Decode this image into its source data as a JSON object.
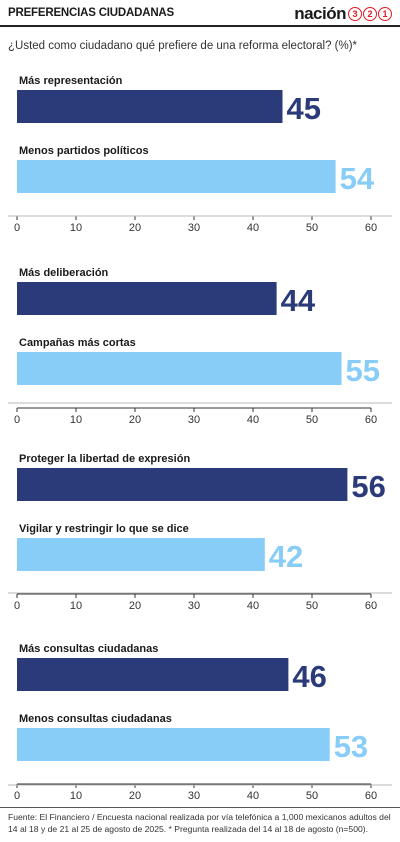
{
  "header": {
    "title": "PREFERENCIAS CIUDADANAS",
    "logo_text": "nación",
    "logo_digits": [
      "3",
      "2",
      "1"
    ]
  },
  "question": "¿Usted como ciudadano qué prefiere de una reforma electoral?   (%)*",
  "colors": {
    "dark": "#2b3a78",
    "light": "#87cdf7",
    "brand_red": "#e31b23"
  },
  "chart_data": [
    {
      "type": "bar",
      "orientation": "horizontal",
      "categories": [
        "Más representación",
        "Menos partidos políticos"
      ],
      "values": [
        45,
        54
      ],
      "xlim": [
        0,
        60
      ],
      "xticks": [
        0,
        10,
        20,
        30,
        40,
        50,
        60
      ]
    },
    {
      "type": "bar",
      "orientation": "horizontal",
      "categories": [
        "Más deliberación",
        "Campañas más cortas"
      ],
      "values": [
        44,
        55
      ],
      "xlim": [
        0,
        60
      ],
      "xticks": [
        0,
        10,
        20,
        30,
        40,
        50,
        60
      ]
    },
    {
      "type": "bar",
      "orientation": "horizontal",
      "categories": [
        "Proteger la libertad de expresión",
        "Vigilar y restringir lo que se dice"
      ],
      "values": [
        56,
        42
      ],
      "xlim": [
        0,
        60
      ],
      "xticks": [
        0,
        10,
        20,
        30,
        40,
        50,
        60
      ]
    },
    {
      "type": "bar",
      "orientation": "horizontal",
      "categories": [
        "Más consultas ciudadanas",
        "Menos consultas ciudadanas"
      ],
      "values": [
        46,
        53
      ],
      "xlim": [
        0,
        60
      ],
      "xticks": [
        0,
        10,
        20,
        30,
        40,
        50,
        60
      ]
    }
  ],
  "footer": "Fuente: El Financiero / Encuesta nacional realizada por vía telefónica a 1,000 mexicanos adultos del 14 al 18 y de 21 al 25 de agosto de 2025. * Pregunta realizada del 14 al 18 de agosto (n=500)."
}
